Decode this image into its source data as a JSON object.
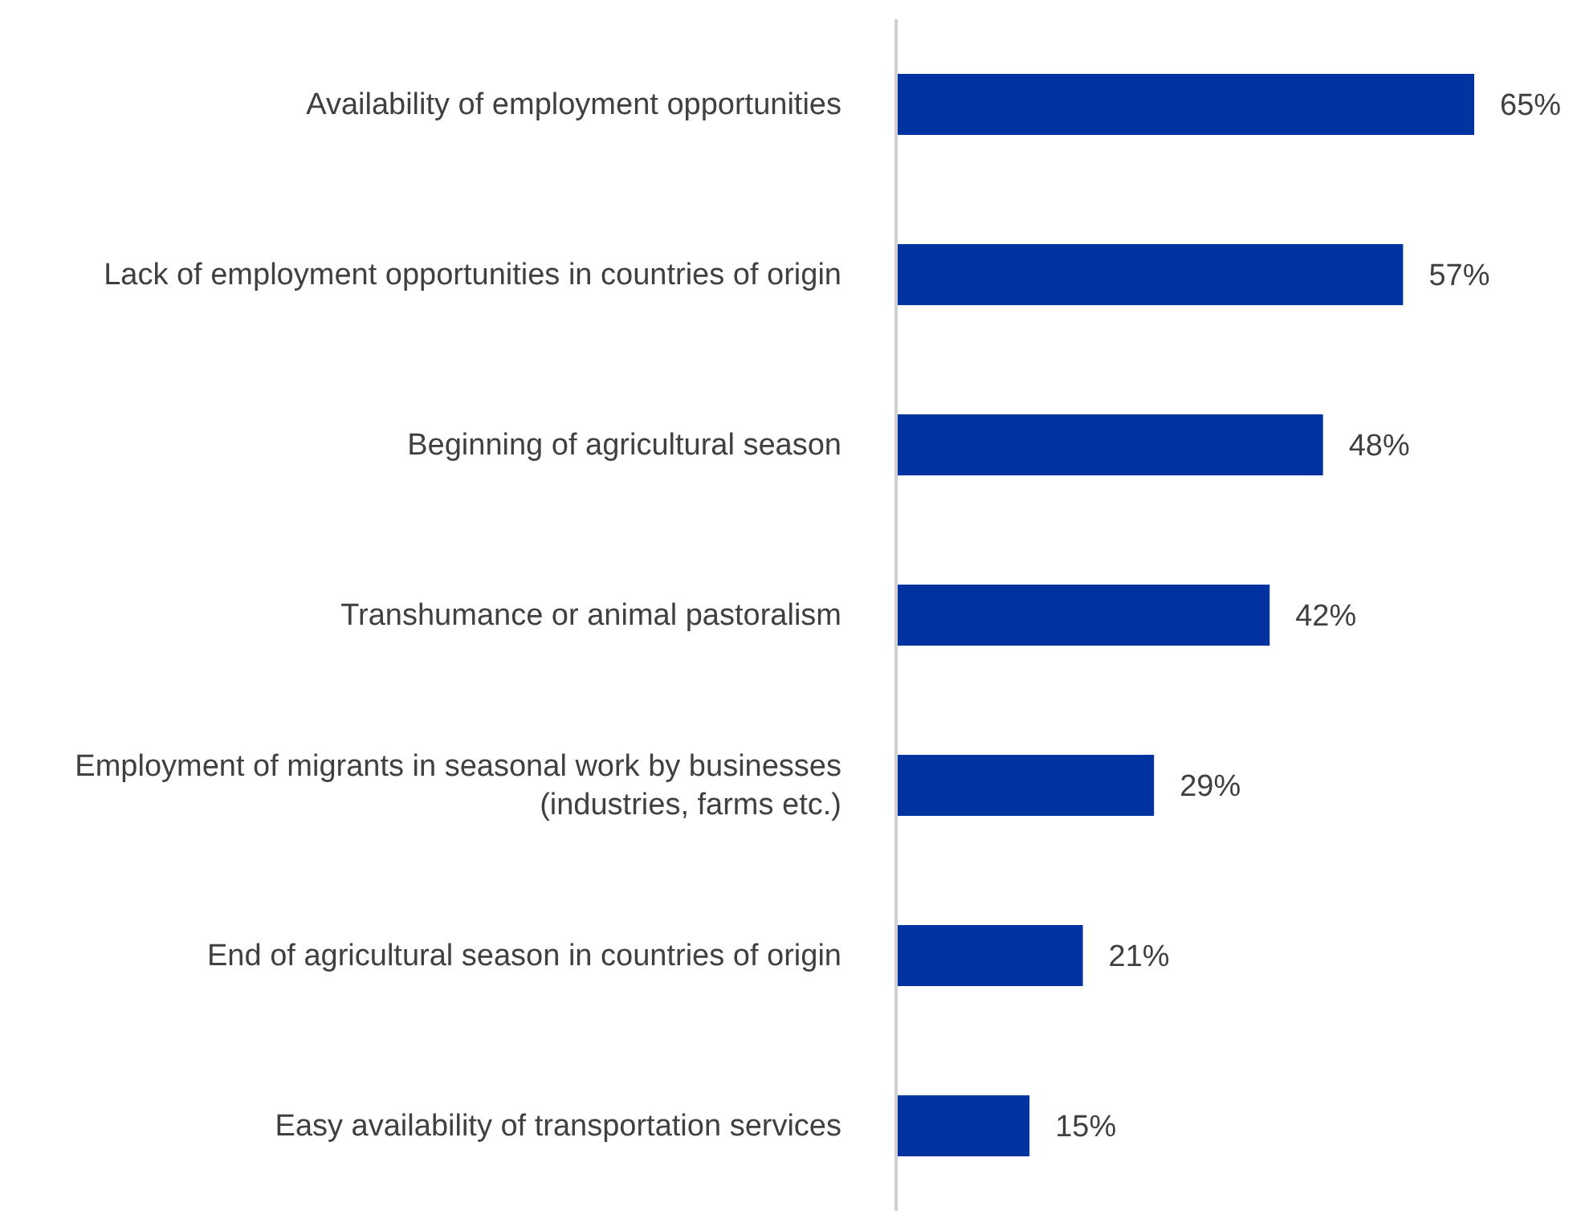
{
  "chart_data": {
    "type": "bar",
    "orientation": "horizontal",
    "categories": [
      "Availability of employment opportunities",
      "Lack of employment opportunities in countries of origin",
      "Beginning of agricultural season",
      "Transhumance or animal pastoralism",
      "Employment of migrants in seasonal work by businesses (industries, farms etc.)",
      "End of agricultural season in countries of origin",
      "Easy availability of transportation services"
    ],
    "series": [
      {
        "color": "#0033a0",
        "values": [
          65,
          57,
          48,
          42,
          29,
          21,
          15
        ],
        "value_labels": [
          "65%",
          "57%",
          "48%",
          "42%",
          "29%",
          "21%",
          "15%"
        ]
      }
    ],
    "grid": false,
    "legend": false
  }
}
